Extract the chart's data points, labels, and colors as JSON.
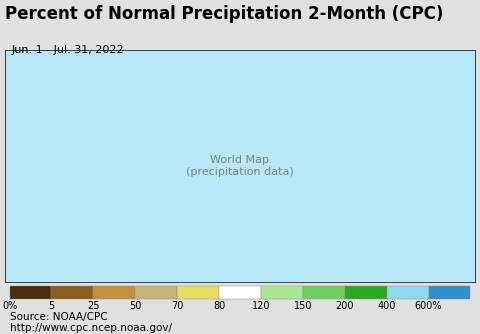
{
  "title": "Percent of Normal Precipitation 2-Month (CPC)",
  "subtitle": "Jun. 1 - Jul. 31, 2022",
  "source_line1": "Source: NOAA/CPC",
  "source_line2": "http://www.cpc.ncep.noaa.gov/",
  "colorbar_colors": [
    "#4a2e0b",
    "#8b5e1e",
    "#c49040",
    "#c8b478",
    "#e8df60",
    "#ffffff",
    "#a8e890",
    "#72d060",
    "#2aa820",
    "#90d8f0",
    "#3090cc"
  ],
  "colorbar_labels": [
    "0%",
    "5",
    "25",
    "50",
    "70",
    "80",
    "120",
    "150",
    "200",
    "400",
    "600%"
  ],
  "fig_bg": "#e0e0e0",
  "map_bg": "#b8e8f8",
  "title_fontsize": 12,
  "subtitle_fontsize": 8,
  "source_fontsize": 7.5
}
